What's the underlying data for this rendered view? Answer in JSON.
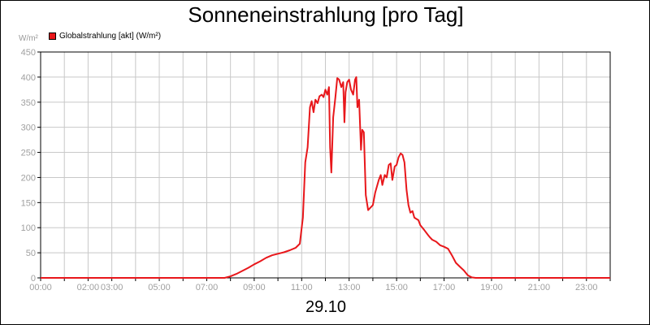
{
  "chart_data": {
    "type": "line",
    "title": "Sonneneinstrahlung [pro Tag]",
    "unit_label": "W/m²",
    "date_label": "29.10",
    "xlabel": "",
    "ylabel": "",
    "xlim": [
      0,
      24
    ],
    "ylim": [
      0,
      450
    ],
    "grid": true,
    "legend_position": "top-left",
    "y_ticks": [
      0,
      50,
      100,
      150,
      200,
      250,
      300,
      350,
      400,
      450
    ],
    "x_ticks": [
      {
        "x": 0,
        "label": "00:00"
      },
      {
        "x": 2,
        "label": "02:00"
      },
      {
        "x": 3,
        "label": "03:00"
      },
      {
        "x": 5,
        "label": "05:00"
      },
      {
        "x": 7,
        "label": "07:00"
      },
      {
        "x": 9,
        "label": "09:00"
      },
      {
        "x": 11,
        "label": "11:00"
      },
      {
        "x": 13,
        "label": "13:00"
      },
      {
        "x": 15,
        "label": "15:00"
      },
      {
        "x": 17,
        "label": "17:00"
      },
      {
        "x": 19,
        "label": "19:00"
      },
      {
        "x": 21,
        "label": "21:00"
      },
      {
        "x": 23,
        "label": "23:00"
      }
    ],
    "series": [
      {
        "name": "Globalstrahlung [akt] (W/m²)",
        "color": "#e8171b",
        "points": [
          [
            0,
            0
          ],
          [
            7.75,
            0
          ],
          [
            8,
            3
          ],
          [
            8.25,
            8
          ],
          [
            8.5,
            14
          ],
          [
            8.75,
            20
          ],
          [
            9,
            27
          ],
          [
            9.25,
            33
          ],
          [
            9.5,
            40
          ],
          [
            9.75,
            45
          ],
          [
            10,
            48
          ],
          [
            10.25,
            51
          ],
          [
            10.5,
            55
          ],
          [
            10.75,
            60
          ],
          [
            10.92,
            68
          ],
          [
            11.05,
            120
          ],
          [
            11.15,
            230
          ],
          [
            11.25,
            260
          ],
          [
            11.35,
            340
          ],
          [
            11.42,
            352
          ],
          [
            11.5,
            330
          ],
          [
            11.58,
            355
          ],
          [
            11.67,
            348
          ],
          [
            11.75,
            362
          ],
          [
            11.85,
            365
          ],
          [
            11.92,
            360
          ],
          [
            12,
            375
          ],
          [
            12.08,
            365
          ],
          [
            12.15,
            380
          ],
          [
            12.2,
            260
          ],
          [
            12.25,
            210
          ],
          [
            12.33,
            320
          ],
          [
            12.42,
            360
          ],
          [
            12.5,
            398
          ],
          [
            12.58,
            395
          ],
          [
            12.67,
            380
          ],
          [
            12.75,
            390
          ],
          [
            12.8,
            310
          ],
          [
            12.85,
            370
          ],
          [
            12.92,
            390
          ],
          [
            13,
            395
          ],
          [
            13.08,
            375
          ],
          [
            13.17,
            365
          ],
          [
            13.25,
            395
          ],
          [
            13.3,
            400
          ],
          [
            13.35,
            340
          ],
          [
            13.42,
            355
          ],
          [
            13.5,
            255
          ],
          [
            13.55,
            295
          ],
          [
            13.62,
            290
          ],
          [
            13.7,
            165
          ],
          [
            13.8,
            135
          ],
          [
            14,
            145
          ],
          [
            14.1,
            170
          ],
          [
            14.25,
            195
          ],
          [
            14.33,
            205
          ],
          [
            14.4,
            185
          ],
          [
            14.5,
            205
          ],
          [
            14.58,
            200
          ],
          [
            14.67,
            225
          ],
          [
            14.75,
            228
          ],
          [
            14.82,
            195
          ],
          [
            14.92,
            222
          ],
          [
            15,
            225
          ],
          [
            15.08,
            240
          ],
          [
            15.17,
            248
          ],
          [
            15.25,
            245
          ],
          [
            15.33,
            230
          ],
          [
            15.42,
            175
          ],
          [
            15.5,
            145
          ],
          [
            15.58,
            130
          ],
          [
            15.67,
            133
          ],
          [
            15.75,
            120
          ],
          [
            15.92,
            115
          ],
          [
            16,
            105
          ],
          [
            16.17,
            95
          ],
          [
            16.33,
            85
          ],
          [
            16.42,
            80
          ],
          [
            16.5,
            76
          ],
          [
            16.67,
            72
          ],
          [
            16.83,
            65
          ],
          [
            17,
            62
          ],
          [
            17.17,
            58
          ],
          [
            17.33,
            45
          ],
          [
            17.5,
            30
          ],
          [
            17.67,
            22
          ],
          [
            17.83,
            15
          ],
          [
            18,
            5
          ],
          [
            18.17,
            1
          ],
          [
            18.33,
            0
          ],
          [
            24,
            0
          ]
        ]
      }
    ]
  }
}
